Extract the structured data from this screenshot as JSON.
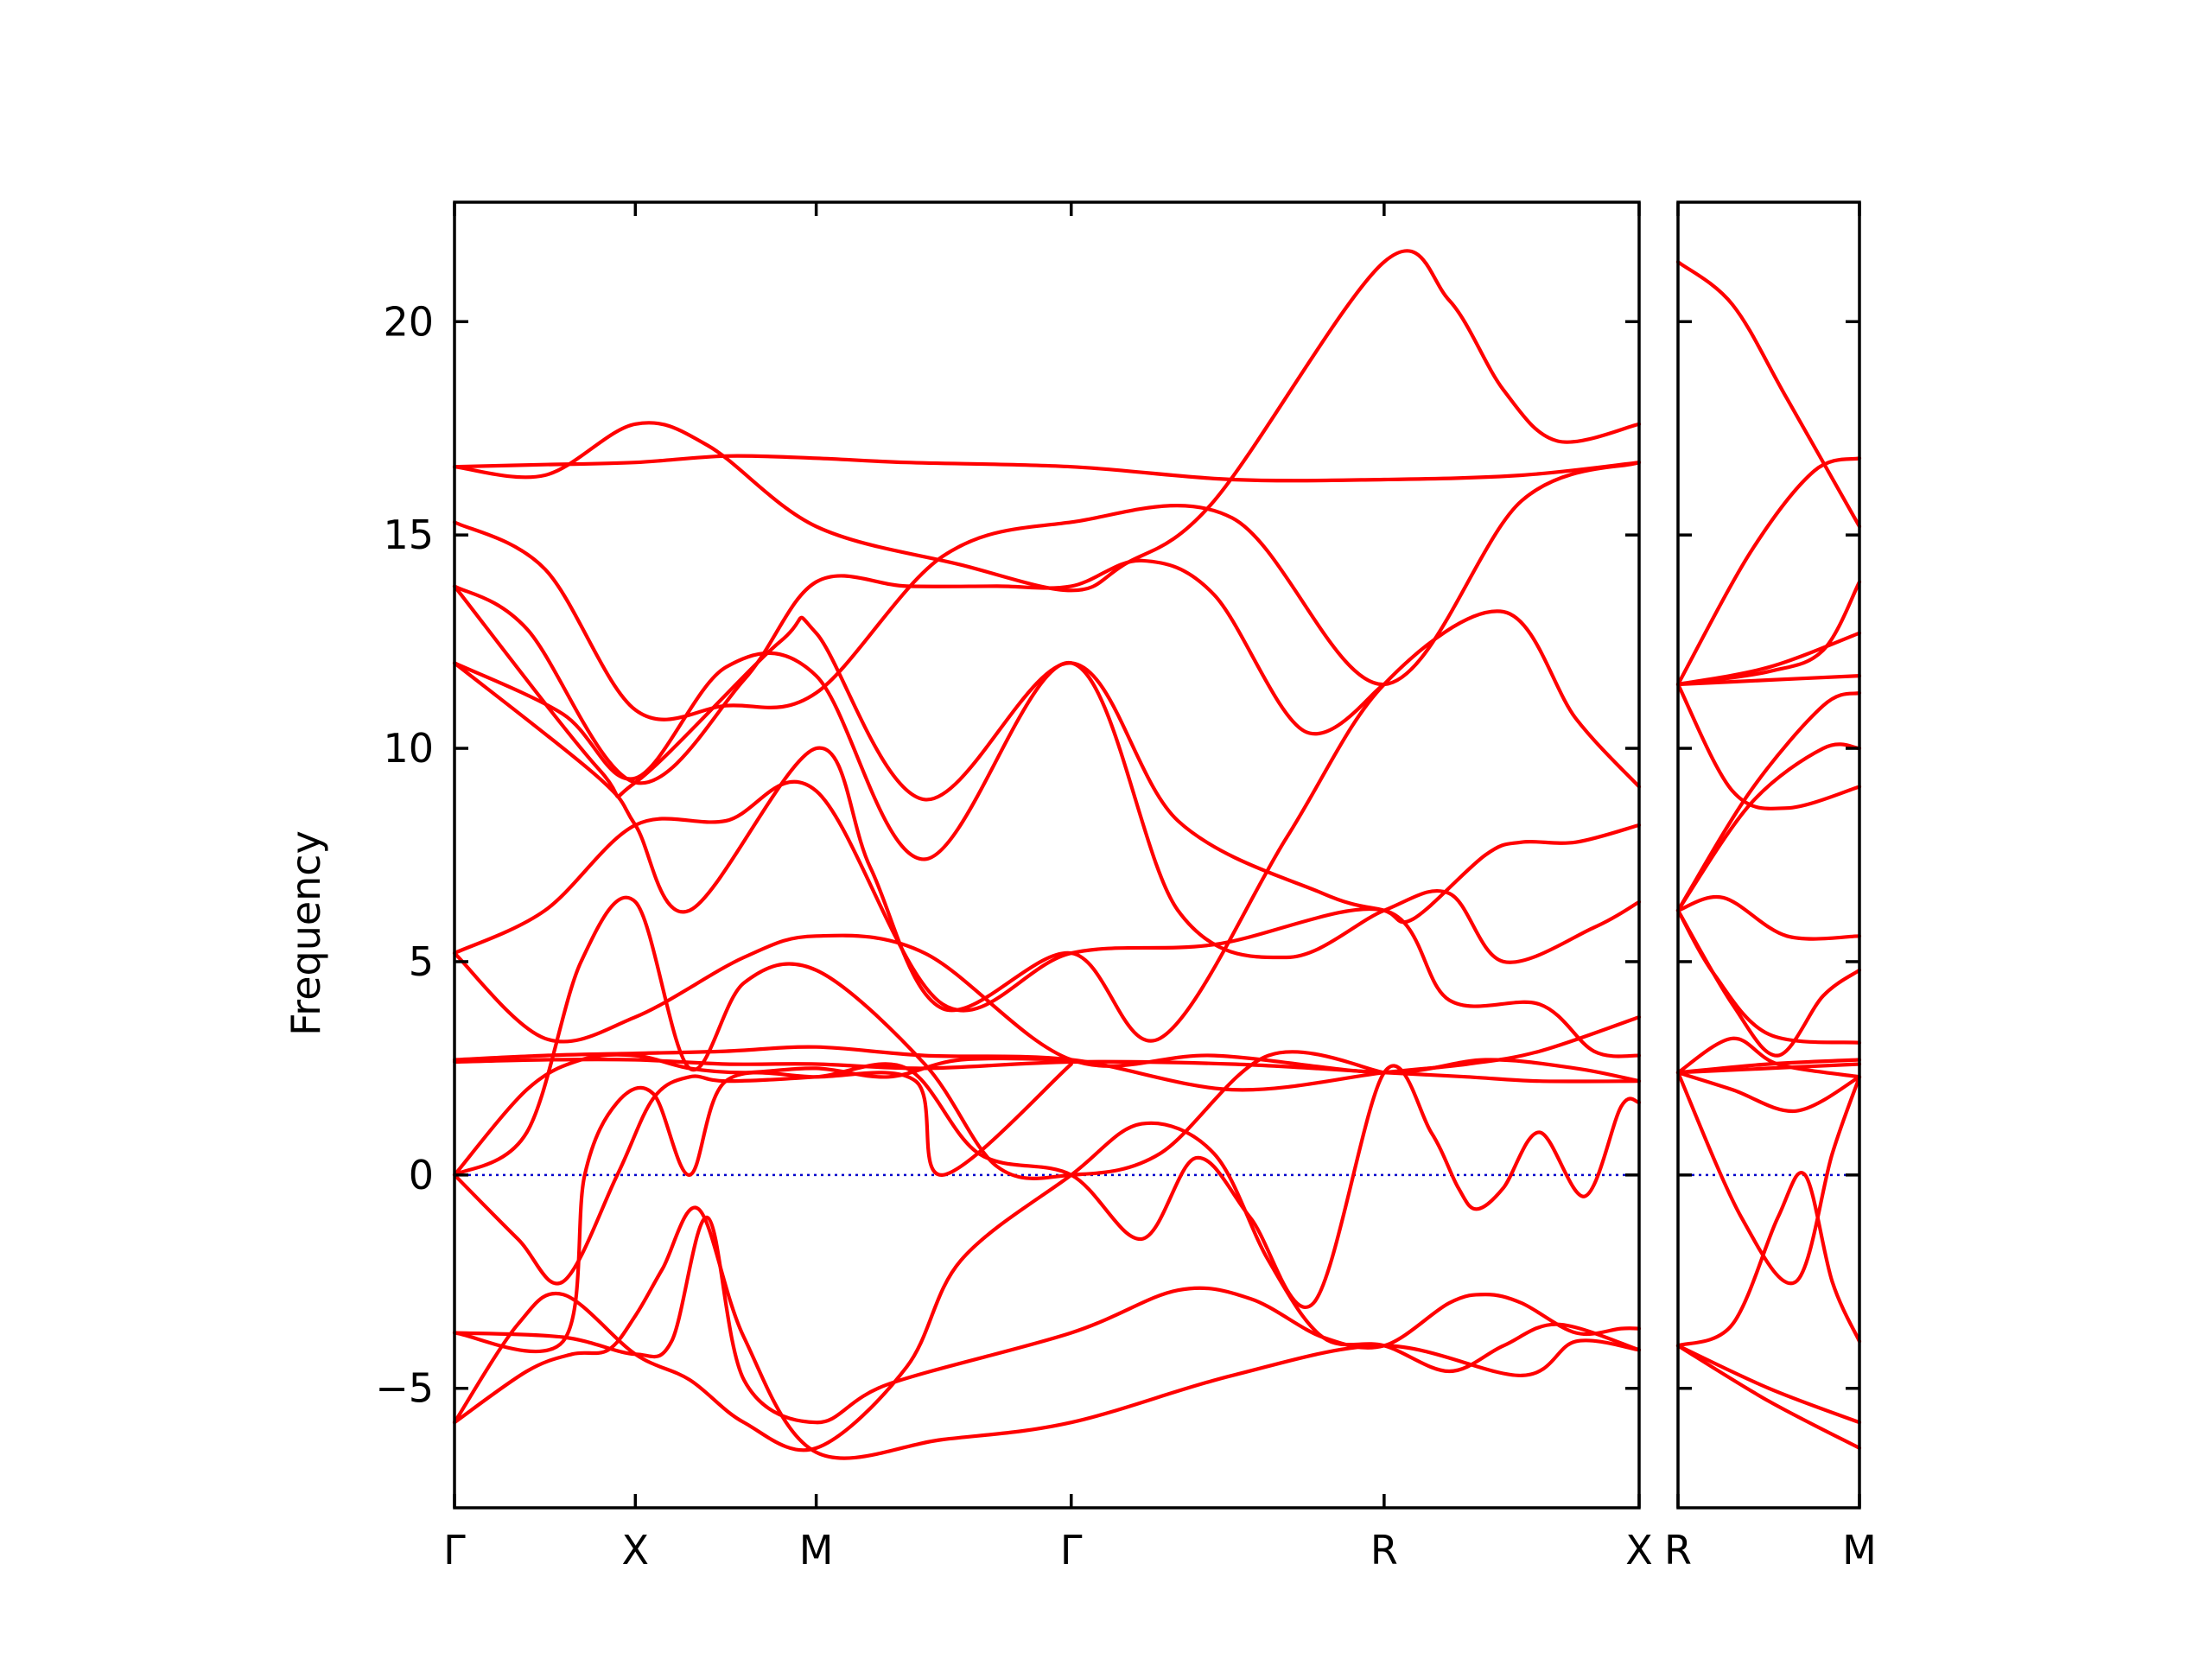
{
  "chart_data": {
    "type": "line",
    "ylabel": "Frequency",
    "ylim": [
      -7.8,
      22.8
    ],
    "yticks": [
      -5,
      0,
      5,
      10,
      15,
      20
    ],
    "ytick_labels": [
      "−5",
      "0",
      "5",
      "10",
      "15",
      "20"
    ],
    "grid": false,
    "zero_line": true,
    "colors": {
      "band": "#ff0000",
      "zero_line": "#0000cc",
      "axes": "#000000"
    },
    "segments": [
      {
        "name": "panel-1",
        "path": [
          "Γ",
          "X",
          "M",
          "Γ",
          "R",
          "X"
        ],
        "tick_positions": [
          0,
          1,
          2,
          3.41,
          5.14,
          6.55
        ],
        "xlim": [
          0,
          6.55
        ],
        "bands": [
          {
            "x": [
              0,
              0.5,
              1,
              1.5,
              2,
              2.5,
              3.41,
              4.3,
              5.14,
              5.9,
              6.55
            ],
            "y": [
              16.6,
              16.65,
              16.7,
              16.85,
              16.8,
              16.7,
              16.6,
              16.3,
              16.3,
              16.4,
              16.7
            ]
          },
          {
            "x": [
              0,
              0.5,
              1,
              1.4,
              2,
              2.8,
              3.41,
              3.7,
              4.2,
              5.14,
              5.5,
              5.8,
              6.1,
              6.55
            ],
            "y": [
              16.6,
              16.4,
              17.6,
              17.1,
              15.2,
              14.3,
              13.7,
              14.3,
              15.8,
              21.4,
              20.5,
              18.4,
              17.2,
              17.6
            ]
          },
          {
            "x": [
              0,
              0.5,
              1,
              1.5,
              2,
              2.7,
              3.41,
              4.3,
              5.14,
              5.9,
              6.55
            ],
            "y": [
              15.3,
              14.2,
              10.9,
              11.0,
              11.3,
              14.5,
              15.3,
              15.4,
              11.5,
              15.8,
              16.7
            ]
          },
          {
            "x": [
              0,
              0.4,
              1,
              1.6,
              2,
              2.5,
              3.0,
              3.41,
              3.8,
              4.2,
              4.7,
              5.14
            ],
            "y": [
              13.8,
              12.8,
              9.2,
              11.6,
              13.9,
              13.8,
              13.8,
              13.8,
              14.4,
              13.6,
              10.4,
              11.5
            ]
          },
          {
            "x": [
              0,
              0.8,
              1,
              1.8,
              2,
              2.6,
              3.41,
              4.0,
              4.8,
              5.14,
              5.3,
              5.7,
              5.9,
              6.2,
              6.55
            ],
            "y": [
              13.8,
              9.5,
              9.2,
              12.5,
              12.7,
              8.8,
              12.0,
              8.3,
              6.6,
              6.2,
              6.0,
              7.5,
              7.8,
              7.8,
              8.2
            ]
          },
          {
            "x": [
              0,
              0.6,
              1,
              1.5,
              2,
              2.6,
              3.41,
              4.0,
              4.6,
              5.14,
              5.5,
              5.8,
              6.3,
              6.55
            ],
            "y": [
              12.0,
              10.8,
              9.3,
              11.9,
              11.7,
              7.4,
              12.0,
              6.2,
              5.1,
              6.2,
              6.6,
              5.0,
              5.8,
              6.4
            ]
          },
          {
            "x": [
              0,
              0.8,
              1,
              1.3,
              2,
              2.3,
              2.7,
              3.41,
              3.9,
              4.6,
              5.14,
              5.8,
              6.2,
              6.55
            ],
            "y": [
              12.0,
              9.3,
              8.2,
              6.2,
              10.0,
              7.2,
              3.9,
              5.2,
              3.2,
              7.9,
              11.5,
              13.2,
              10.7,
              9.1
            ]
          },
          {
            "x": [
              0,
              0.5,
              1,
              1.5,
              2,
              2.7,
              3.41,
              4.2,
              5.14,
              5.5,
              6.0,
              6.3,
              6.55
            ],
            "y": [
              5.2,
              6.2,
              8.2,
              8.3,
              9.0,
              4.0,
              5.2,
              5.4,
              6.2,
              4.1,
              4.0,
              2.9,
              2.8
            ]
          },
          {
            "x": [
              0,
              0.5,
              1,
              1.6,
              2,
              2.6,
              3.41,
              4.2,
              5.14,
              5.7,
              6.2,
              6.55
            ],
            "y": [
              5.2,
              3.2,
              3.7,
              5.1,
              5.6,
              5.2,
              2.7,
              2.8,
              2.4,
              2.7,
              2.5,
              2.2
            ]
          },
          {
            "x": [
              0,
              0.5,
              1,
              1.5,
              2,
              2.6,
              3.41,
              4.3,
              5.14,
              5.6,
              6.0,
              6.55
            ],
            "y": [
              2.7,
              2.8,
              2.85,
              2.9,
              3.0,
              2.8,
              2.7,
              2.0,
              2.4,
              2.6,
              2.9,
              3.7
            ]
          },
          {
            "x": [
              0,
              0.5,
              1,
              1.5,
              2,
              2.6,
              3.41,
              4.3,
              5.14,
              5.6,
              6.0,
              6.55
            ],
            "y": [
              2.65,
              2.7,
              2.7,
              2.6,
              2.6,
              2.5,
              2.65,
              2.6,
              2.4,
              2.3,
              2.2,
              2.2
            ]
          },
          {
            "x": [
              0,
              0.4,
              0.7,
              1,
              1.3,
              1.6,
              2,
              2.4,
              2.8,
              3.41
            ],
            "y": [
              0,
              2.0,
              2.7,
              2.8,
              2.5,
              2.4,
              2.5,
              2.3,
              2.7,
              2.7
            ]
          },
          {
            "x": [
              0,
              0.6,
              0.72,
              0.9,
              1.1,
              1.3,
              1.5,
              2,
              2.55,
              2.7,
              3.41
            ],
            "y": [
              -3.7,
              -3.9,
              0,
              1.7,
              1.9,
              0,
              2.2,
              2.3,
              2.2,
              0,
              2.6
            ]
          },
          {
            "x": [
              0,
              0.6,
              1,
              1.2,
              1.4,
              1.6,
              2,
              2.4,
              3.41,
              4.0,
              4.4,
              4.8,
              5.14,
              5.5,
              5.7,
              5.9,
              6.2,
              6.45,
              6.55
            ],
            "y": [
              -3.7,
              -3.8,
              -4.2,
              -3.9,
              -1.0,
              -4.8,
              -5.8,
              -4.9,
              -3.7,
              -2.7,
              -2.9,
              -3.8,
              -4.0,
              -3.0,
              -2.8,
              -3.0,
              -3.7,
              -3.6,
              -3.6
            ]
          },
          {
            "x": [
              0,
              0.35,
              0.6,
              1,
              1.3,
              1.6,
              2,
              2.5,
              2.8,
              3.41,
              3.8,
              4.2,
              4.5,
              4.8,
              5.14,
              5.5,
              5.8,
              6.1,
              6.55
            ],
            "y": [
              -5.8,
              -3.5,
              -2.8,
              -4.2,
              -4.8,
              -5.8,
              -6.4,
              -4.5,
              -2.0,
              0,
              1.2,
              0.5,
              -2.0,
              -3.8,
              -4.0,
              -4.6,
              -4.0,
              -3.5,
              -4.1
            ]
          },
          {
            "x": [
              0,
              0.4,
              0.65,
              0.85,
              1,
              1.15,
              1.35,
              1.6,
              2,
              2.7,
              3.41,
              4.3,
              5.14,
              5.9,
              6.2,
              6.55
            ],
            "y": [
              -5.8,
              -4.6,
              -4.2,
              -4.1,
              -3.3,
              -2.2,
              -0.8,
              -3.8,
              -6.5,
              -6.2,
              -5.8,
              -4.7,
              -4.0,
              -4.7,
              -3.9,
              -4.1
            ]
          },
          {
            "x": [
              0,
              0.35,
              0.6,
              0.9,
              1.1,
              1.3,
              1.5,
              2,
              2.5,
              2.9,
              3.41,
              3.8,
              4.1,
              4.4,
              4.75,
              5.14,
              5.4,
              5.55,
              5.65,
              5.8,
              6.0,
              6.25,
              6.45,
              6.55
            ],
            "y": [
              0,
              -1.5,
              -2.5,
              0,
              1.8,
              2.3,
              2.2,
              2.3,
              2.5,
              0.5,
              0,
              -1.5,
              0.4,
              -1.0,
              -3.0,
              2.4,
              1.0,
              -0.3,
              -0.8,
              -0.3,
              1.0,
              -0.5,
              1.6,
              1.7
            ]
          },
          {
            "x": [
              0,
              0.4,
              0.7,
              1,
              1.3,
              1.6,
              2,
              2.6,
              3.0,
              3.41,
              3.9,
              4.5,
              5.14
            ],
            "y": [
              0,
              1.0,
              5.0,
              6.4,
              2.5,
              4.5,
              4.8,
              2.6,
              0.2,
              0,
              0.5,
              2.8,
              2.4
            ]
          }
        ]
      },
      {
        "name": "panel-2",
        "path": [
          "R",
          "M"
        ],
        "tick_positions": [
          0,
          1
        ],
        "xlim": [
          0,
          1
        ],
        "bands": [
          {
            "x": [
              0,
              0.3,
              0.6,
              1
            ],
            "y": [
              21.4,
              20.4,
              18.2,
              15.2
            ]
          },
          {
            "x": [
              0,
              0.4,
              0.75,
              1
            ],
            "y": [
              11.5,
              14.6,
              16.5,
              16.8
            ]
          },
          {
            "x": [
              0,
              0.5,
              0.8,
              1
            ],
            "y": [
              11.5,
              11.8,
              12.3,
              13.9
            ]
          },
          {
            "x": [
              0,
              0.5,
              1
            ],
            "y": [
              11.5,
              11.9,
              12.7
            ]
          },
          {
            "x": [
              0,
              0.5,
              1
            ],
            "y": [
              11.5,
              11.6,
              11.7
            ]
          },
          {
            "x": [
              0,
              0.3,
              0.6,
              1
            ],
            "y": [
              11.5,
              9.0,
              8.6,
              9.1
            ]
          },
          {
            "x": [
              0,
              0.4,
              0.8,
              1
            ],
            "y": [
              6.2,
              8.7,
              10.0,
              10.0
            ]
          },
          {
            "x": [
              0,
              0.4,
              0.8,
              1
            ],
            "y": [
              6.2,
              9.0,
              11.0,
              11.3
            ]
          },
          {
            "x": [
              0,
              0.25,
              0.6,
              1
            ],
            "y": [
              6.2,
              6.5,
              5.6,
              5.6
            ]
          },
          {
            "x": [
              0,
              0.2,
              0.5,
              1
            ],
            "y": [
              6.2,
              4.7,
              3.3,
              3.1
            ]
          },
          {
            "x": [
              0,
              0.3,
              0.55,
              0.8,
              1
            ],
            "y": [
              6.2,
              4.0,
              2.8,
              4.2,
              4.8
            ]
          },
          {
            "x": [
              0,
              0.5,
              1
            ],
            "y": [
              2.4,
              2.5,
              2.6
            ]
          },
          {
            "x": [
              0,
              0.5,
              1
            ],
            "y": [
              2.4,
              2.6,
              2.7
            ]
          },
          {
            "x": [
              0,
              0.3,
              0.55,
              1
            ],
            "y": [
              2.4,
              3.2,
              2.6,
              2.3
            ]
          },
          {
            "x": [
              0,
              0.3,
              0.65,
              1
            ],
            "y": [
              2.4,
              2.0,
              1.5,
              2.3
            ]
          },
          {
            "x": [
              0,
              0.35,
              0.65,
              0.85,
              1
            ],
            "y": [
              2.4,
              -1.0,
              -2.5,
              0.5,
              2.3
            ]
          },
          {
            "x": [
              0,
              0.3,
              0.55,
              0.7,
              0.85,
              1
            ],
            "y": [
              -4.0,
              -3.5,
              -1.0,
              0,
              -2.5,
              -3.9
            ]
          },
          {
            "x": [
              0,
              0.5,
              1
            ],
            "y": [
              -4.0,
              -5.0,
              -5.8
            ]
          },
          {
            "x": [
              0,
              0.5,
              1
            ],
            "y": [
              -4.0,
              -5.3,
              -6.4
            ]
          }
        ]
      }
    ],
    "xtick_labels": [
      "Γ",
      "X",
      "M",
      "Γ",
      "R",
      "X",
      "R",
      "M"
    ]
  }
}
